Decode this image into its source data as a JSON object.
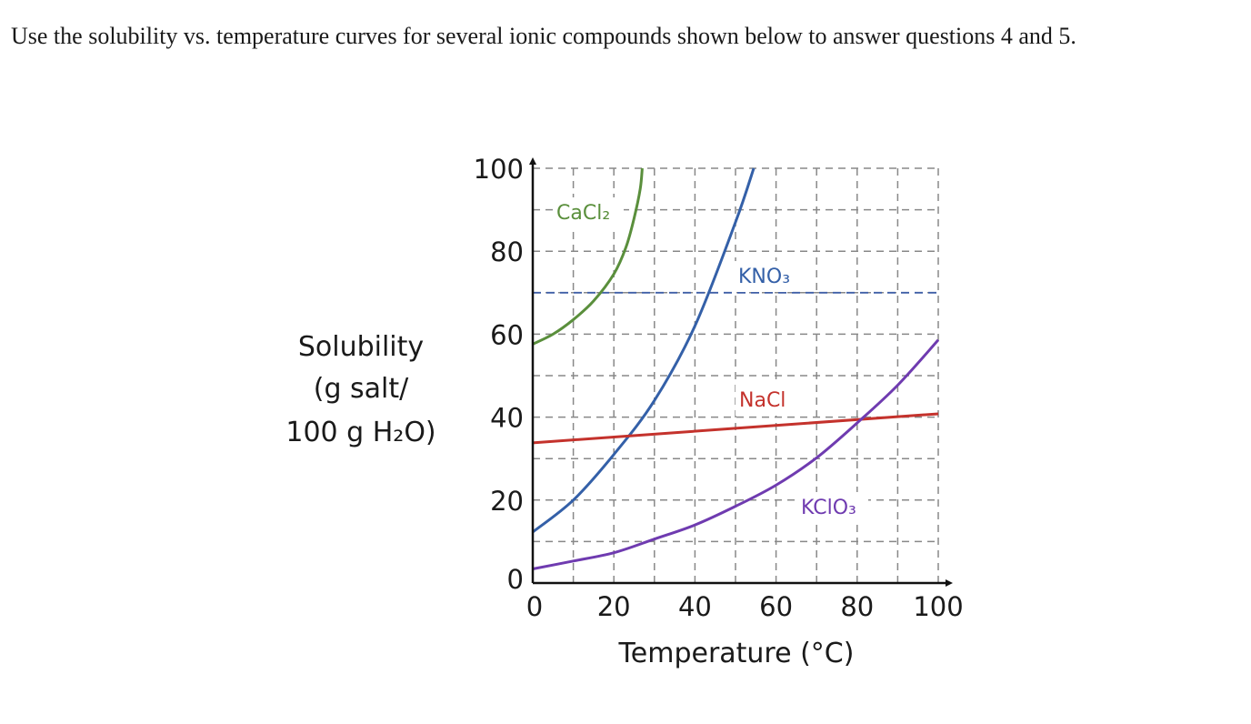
{
  "intro_text": "Use the solubility vs. temperature curves for several ionic compounds shown below to answer questions 4 and 5.",
  "chart_data": {
    "type": "line",
    "title": "",
    "xlabel": "Temperature (°C)",
    "ylabel_lines": [
      "Solubility",
      "(g salt/",
      "100 g H₂O)"
    ],
    "xlim": [
      0,
      100
    ],
    "ylim": [
      0,
      100
    ],
    "xticks": [
      "0",
      "20",
      "40",
      "60",
      "80",
      "100"
    ],
    "yticks": [
      "0",
      "20",
      "40",
      "60",
      "80",
      "100"
    ],
    "grid": true,
    "reference_line": {
      "y": 70,
      "color": "#3f5fa6",
      "style": "dashed"
    },
    "series": [
      {
        "name": "CaCl₂",
        "color": "#5a8f3c",
        "points": [
          [
            0,
            57.6
          ],
          [
            5,
            60
          ],
          [
            10,
            63.5
          ],
          [
            15,
            68
          ],
          [
            20,
            74.5
          ],
          [
            23,
            81
          ],
          [
            25,
            88
          ],
          [
            26.5,
            95
          ],
          [
            27,
            100
          ]
        ]
      },
      {
        "name": "KNO₃",
        "color": "#3460a8",
        "points": [
          [
            0,
            12.3
          ],
          [
            10,
            20
          ],
          [
            20,
            31
          ],
          [
            30,
            44
          ],
          [
            40,
            62
          ],
          [
            50,
            87
          ],
          [
            54.5,
            100
          ]
        ]
      },
      {
        "name": "NaCl",
        "color": "#c4322c",
        "points": [
          [
            0,
            33.8
          ],
          [
            100,
            40.8
          ]
        ]
      },
      {
        "name": "KClO₃",
        "color": "#6f3bb0",
        "points": [
          [
            0,
            3.4
          ],
          [
            10,
            5.3
          ],
          [
            20,
            7.3
          ],
          [
            30,
            10.6
          ],
          [
            40,
            14
          ],
          [
            50,
            18.5
          ],
          [
            60,
            23.6
          ],
          [
            70,
            30.2
          ],
          [
            80,
            38.6
          ],
          [
            90,
            47.7
          ],
          [
            100,
            58.6
          ]
        ]
      }
    ]
  }
}
